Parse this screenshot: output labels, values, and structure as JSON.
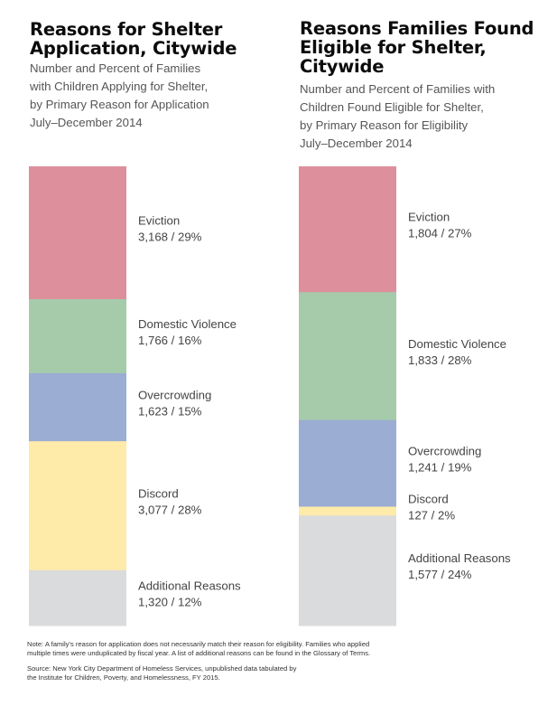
{
  "chart_data": [
    {
      "type": "bar",
      "stacked": true,
      "title": "Reasons for Shelter Application, Citywide",
      "subtitle": [
        "Number and Percent of Families",
        "with Children Applying for Shelter,",
        "by Primary Reason for Application",
        "July–December 2014"
      ],
      "categories": [
        "Eviction",
        "Domestic Violence",
        "Overcrowding",
        "Discord",
        "Additional Reasons"
      ],
      "values": [
        3168,
        1766,
        1623,
        3077,
        1320
      ],
      "percents": [
        29,
        16,
        15,
        28,
        12
      ],
      "labels": [
        "3,168 / 29%",
        "1,766 / 16%",
        "1,623 / 15%",
        "3,077 / 28%",
        "1,320 / 12%"
      ],
      "colors": [
        "#dd8f9c",
        "#a5cbab",
        "#9badd3",
        "#feeaa9",
        "#dadbdc"
      ],
      "xlabel": "",
      "ylabel": ""
    },
    {
      "type": "bar",
      "stacked": true,
      "title": "Reasons Families Found Eligible for Shelter, Citywide",
      "subtitle": [
        "Number and Percent of Families with",
        "Children Found Eligible for Shelter,",
        "by Primary Reason for Eligibility",
        "July–December 2014"
      ],
      "categories": [
        "Eviction",
        "Domestic Violence",
        "Overcrowding",
        "Discord",
        "Additional Reasons"
      ],
      "values": [
        1804,
        1833,
        1241,
        127,
        1577
      ],
      "percents": [
        27,
        28,
        19,
        2,
        24
      ],
      "labels": [
        "1,804 / 27%",
        "1,833 / 28%",
        "1,241 / 19%",
        "127 / 2%",
        "1,577 / 24%"
      ],
      "colors": [
        "#dd8f9c",
        "#a5cbab",
        "#9badd3",
        "#feeaa9",
        "#dadbdc"
      ],
      "xlabel": "",
      "ylabel": ""
    }
  ],
  "left": {
    "title_lines": [
      "Reasons for Shelter",
      "Application, Citywide"
    ],
    "subtitle_lines": [
      "Number and Percent of Families",
      "with Children Applying for Shelter,",
      "by Primary Reason for Application",
      "July–December 2014"
    ]
  },
  "right": {
    "title_lines": [
      "Reasons Families Found",
      "Eligible for Shelter,",
      "Citywide"
    ],
    "subtitle_lines": [
      "Number and Percent of Families with",
      "Children Found Eligible for Shelter,",
      "by Primary Reason for Eligibility",
      "July–December 2014"
    ]
  },
  "footer": {
    "note_lines": [
      "Note: A family’s reason for application does not necessarily match their reason for eligibility. Families who applied",
      "multiple times were unduplicated by fiscal year. A list of additional reasons can be found in the Glossary of Terms."
    ],
    "source_lines": [
      "Source: New York City Department of Homeless Services, unpublished data tabulated by",
      "the Institute for Children, Poverty, and Homelessness, FY 2015."
    ]
  }
}
